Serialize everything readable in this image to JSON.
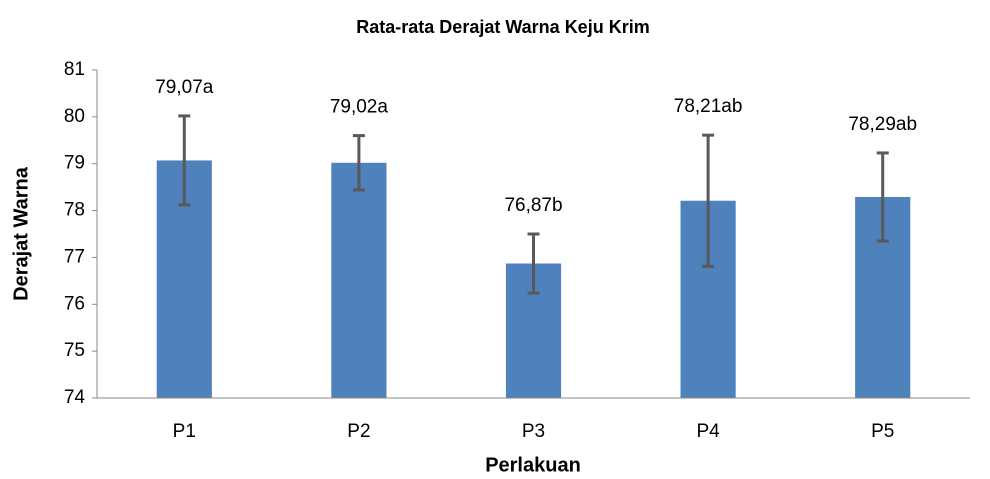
{
  "chart_data": {
    "type": "bar",
    "title": "Rata-rata Derajat Warna Keju Krim",
    "x_label": "Perlakuan",
    "y_label": "Derajat Warna",
    "categories": [
      "P1",
      "P2",
      "P3",
      "P4",
      "P5"
    ],
    "values": [
      79.07,
      79.02,
      76.87,
      78.21,
      78.29
    ],
    "value_labels": [
      "79,07a",
      "79,02a",
      "76,87b",
      "78,21ab",
      "78,29ab"
    ],
    "errors": [
      0.95,
      0.58,
      0.63,
      1.4,
      0.94
    ],
    "color": "#4f81bd",
    "error_color": "#595959",
    "ylim": [
      74,
      81
    ],
    "yticks": [
      74,
      75,
      76,
      77,
      78,
      79,
      80,
      81
    ],
    "grid": false
  }
}
